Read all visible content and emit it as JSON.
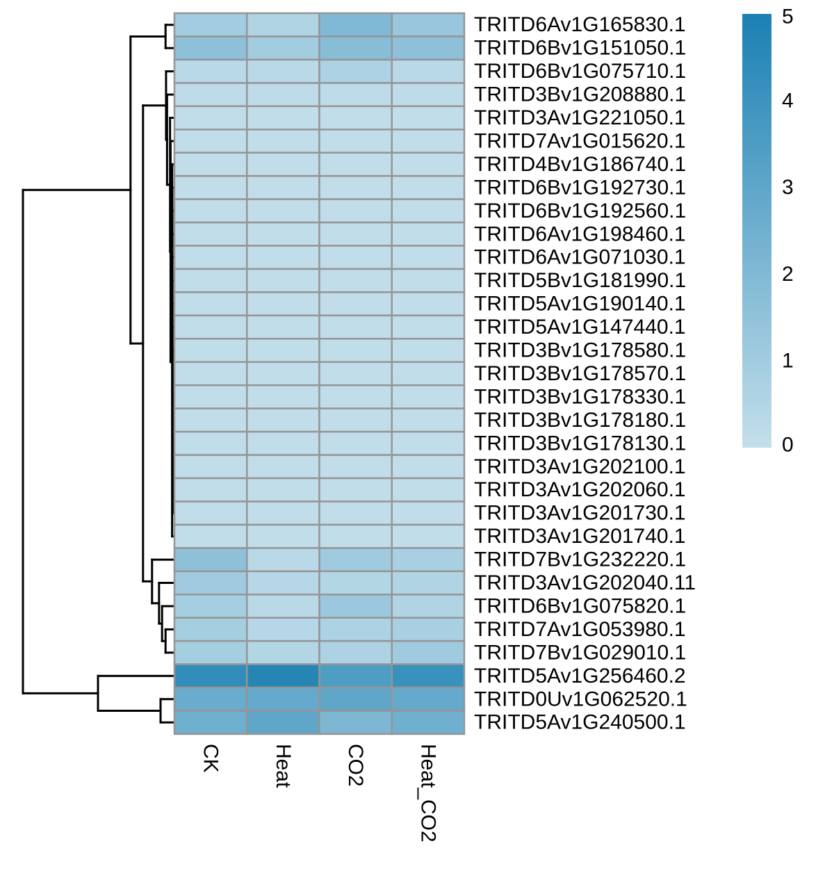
{
  "chart_data": {
    "type": "heatmap",
    "title": "",
    "xlabel": "",
    "ylabel": "",
    "columns": [
      "CK",
      "Heat",
      "CO2",
      "Heat_CO2"
    ],
    "rows": [
      "TRITD6Av1G165830.1",
      "TRITD6Bv1G151050.1",
      "TRITD6Bv1G075710.1",
      "TRITD3Bv1G208880.1",
      "TRITD3Av1G221050.1",
      "TRITD7Av1G015620.1",
      "TRITD4Bv1G186740.1",
      "TRITD6Bv1G192730.1",
      "TRITD6Bv1G192560.1",
      "TRITD6Av1G198460.1",
      "TRITD6Av1G071030.1",
      "TRITD5Bv1G181990.1",
      "TRITD5Av1G190140.1",
      "TRITD5Av1G147440.1",
      "TRITD3Bv1G178580.1",
      "TRITD3Bv1G178570.1",
      "TRITD3Bv1G178330.1",
      "TRITD3Bv1G178180.1",
      "TRITD3Bv1G178130.1",
      "TRITD3Av1G202100.1",
      "TRITD3Av1G202060.1",
      "TRITD3Av1G201730.1",
      "TRITD3Av1G201740.1",
      "TRITD7Bv1G232220.1",
      "TRITD3Av1G202040.11",
      "TRITD6Bv1G075820.1",
      "TRITD7Av1G053980.1",
      "TRITD7Bv1G029010.1",
      "TRITD5Av1G256460.2",
      "TRITD0Uv1G062520.1",
      "TRITD5Av1G240500.1"
    ],
    "values": [
      [
        1.0,
        0.6,
        2.0,
        1.3
      ],
      [
        1.6,
        1.0,
        1.8,
        1.6
      ],
      [
        0.3,
        0.3,
        0.7,
        0.3
      ],
      [
        0.2,
        0.2,
        0.2,
        0.2
      ],
      [
        0.1,
        0.1,
        0.1,
        0.1
      ],
      [
        0.1,
        0.1,
        0.1,
        0.1
      ],
      [
        0.1,
        0.1,
        0.1,
        0.1
      ],
      [
        0.1,
        0.1,
        0.1,
        0.1
      ],
      [
        0.1,
        0.1,
        0.1,
        0.1
      ],
      [
        0.1,
        0.1,
        0.1,
        0.1
      ],
      [
        0.1,
        0.1,
        0.1,
        0.1
      ],
      [
        0.1,
        0.1,
        0.1,
        0.1
      ],
      [
        0.1,
        0.1,
        0.1,
        0.1
      ],
      [
        0.1,
        0.1,
        0.1,
        0.1
      ],
      [
        0.1,
        0.1,
        0.1,
        0.1
      ],
      [
        0.1,
        0.1,
        0.1,
        0.1
      ],
      [
        0.1,
        0.1,
        0.1,
        0.1
      ],
      [
        0.1,
        0.1,
        0.1,
        0.1
      ],
      [
        0.1,
        0.1,
        0.1,
        0.1
      ],
      [
        0.1,
        0.1,
        0.1,
        0.1
      ],
      [
        0.1,
        0.1,
        0.1,
        0.1
      ],
      [
        0.1,
        0.1,
        0.1,
        0.1
      ],
      [
        0.1,
        0.1,
        0.1,
        0.1
      ],
      [
        1.6,
        0.3,
        1.1,
        0.8
      ],
      [
        1.1,
        0.4,
        0.5,
        0.6
      ],
      [
        0.9,
        0.3,
        1.2,
        0.6
      ],
      [
        0.9,
        0.4,
        0.7,
        0.8
      ],
      [
        0.9,
        0.5,
        0.7,
        1.1
      ],
      [
        4.3,
        4.7,
        3.5,
        4.1
      ],
      [
        2.7,
        2.8,
        3.0,
        2.8
      ],
      [
        2.5,
        3.0,
        2.1,
        2.5
      ]
    ],
    "scale": {
      "min": 0,
      "max": 5,
      "ticks": [
        0,
        1,
        2,
        3,
        4,
        5
      ]
    },
    "colors": {
      "low": "#c4dfeb",
      "high": "#1b80b3",
      "cell_border": "#959595"
    },
    "legend_position": "top-right",
    "row_dendrogram": {
      "leaf_order": [
        0,
        1,
        2,
        3,
        4,
        5,
        6,
        7,
        8,
        9,
        10,
        11,
        12,
        13,
        14,
        15,
        16,
        17,
        18,
        19,
        20,
        21,
        22,
        23,
        24,
        25,
        26,
        27,
        28,
        29,
        30
      ],
      "merges": [
        [
          -1,
          -2,
          0.15
        ],
        [
          -21,
          -22,
          0.004
        ],
        [
          -20,
          2,
          0.005
        ],
        [
          -19,
          3,
          0.006
        ],
        [
          -18,
          4,
          0.007
        ],
        [
          -17,
          5,
          0.008
        ],
        [
          -16,
          6,
          0.009
        ],
        [
          -15,
          7,
          0.01
        ],
        [
          -14,
          8,
          0.011
        ],
        [
          -13,
          9,
          0.012
        ],
        [
          -12,
          10,
          0.013
        ],
        [
          -11,
          11,
          0.014
        ],
        [
          -10,
          12,
          0.015
        ],
        [
          -9,
          13,
          0.016
        ],
        [
          -8,
          14,
          0.017
        ],
        [
          -7,
          15,
          0.018
        ],
        [
          -23,
          16,
          0.019
        ],
        [
          -6,
          17,
          0.05
        ],
        [
          -5,
          18,
          0.06
        ],
        [
          -4,
          19,
          0.12
        ],
        [
          -3,
          20,
          0.14
        ],
        [
          -27,
          -28,
          0.15
        ],
        [
          -26,
          22,
          0.22
        ],
        [
          -25,
          23,
          0.28
        ],
        [
          -24,
          24,
          0.42
        ],
        [
          21,
          25,
          0.6
        ],
        [
          1,
          26,
          0.85
        ],
        [
          -30,
          -31,
          0.25
        ],
        [
          -29,
          28,
          1.5
        ],
        [
          27,
          29,
          3.0
        ]
      ]
    }
  }
}
